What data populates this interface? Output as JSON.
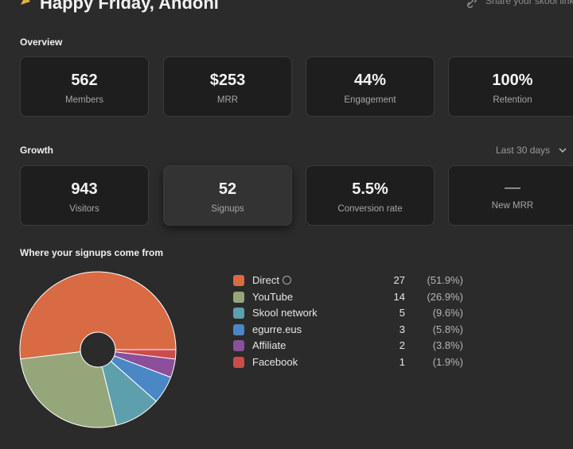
{
  "header": {
    "greeting": "Happy Friday, Andoni",
    "share": "Share your skool link"
  },
  "overview": {
    "title": "Overview",
    "cards": [
      {
        "value": "562",
        "label": "Members"
      },
      {
        "value": "$253",
        "label": "MRR"
      },
      {
        "value": "44%",
        "label": "Engagement"
      },
      {
        "value": "100%",
        "label": "Retention"
      }
    ]
  },
  "growth": {
    "title": "Growth",
    "period": "Last 30 days",
    "cards": [
      {
        "value": "943",
        "label": "Visitors"
      },
      {
        "value": "52",
        "label": "Signups"
      },
      {
        "value": "5.5%",
        "label": "Conversion rate"
      },
      {
        "value": "—",
        "label": "New MRR"
      }
    ]
  },
  "signups": {
    "title": "Where your signups come from",
    "chart_data": {
      "type": "pie",
      "categories": [
        "Direct",
        "YouTube",
        "Skool network",
        "egurre.eus",
        "Affiliate",
        "Facebook"
      ],
      "values": [
        27,
        14,
        5,
        3,
        2,
        1
      ],
      "shares": [
        "(51.9%)",
        "(26.9%)",
        "(9.6%)",
        "(5.8%)",
        "(3.8%)",
        "(1.9%)"
      ],
      "colors": [
        "#d86a44",
        "#95a67b",
        "#5e9fae",
        "#4a87c5",
        "#8b4f9b",
        "#cc4b4b"
      ]
    }
  }
}
